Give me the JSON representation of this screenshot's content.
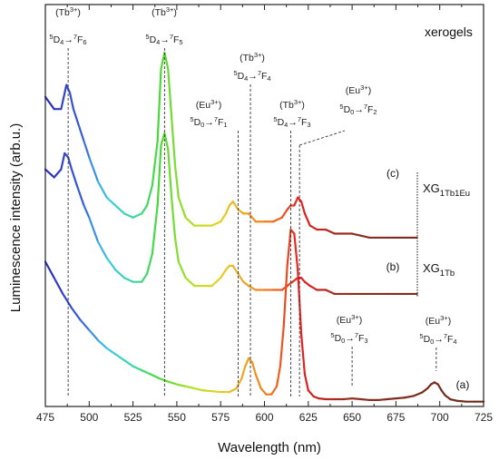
{
  "chart_data": {
    "type": "line",
    "title": "xerogels",
    "xlabel": "Wavelength (nm)",
    "ylabel": "Luminescence intensity (arb.u.)",
    "xlim": [
      475,
      725
    ],
    "xticks": [
      "475",
      "500",
      "525",
      "550",
      "575",
      "600",
      "625",
      "650",
      "675",
      "700",
      "725"
    ],
    "grid": false,
    "y_ticks_shown": false,
    "series": [
      {
        "name": "XG1Tb1Eu",
        "tag": "(c)",
        "x": [
          475,
          480,
          484,
          487,
          489,
          491,
          494,
          497,
          500,
          505,
          510,
          515,
          520,
          525,
          530,
          533,
          536,
          539,
          541,
          543,
          545,
          547,
          549,
          551,
          555,
          560,
          565,
          570,
          575,
          578,
          580,
          582,
          585,
          588,
          591,
          595,
          600,
          605,
          610,
          613,
          615,
          617,
          619,
          621,
          623,
          626,
          630,
          635,
          640,
          650,
          660,
          670,
          680,
          687
        ],
        "y": [
          0.77,
          0.74,
          0.74,
          0.8,
          0.78,
          0.74,
          0.7,
          0.66,
          0.62,
          0.56,
          0.52,
          0.5,
          0.48,
          0.47,
          0.48,
          0.5,
          0.55,
          0.66,
          0.84,
          0.88,
          0.84,
          0.72,
          0.6,
          0.52,
          0.47,
          0.45,
          0.45,
          0.45,
          0.46,
          0.48,
          0.5,
          0.51,
          0.49,
          0.48,
          0.48,
          0.46,
          0.46,
          0.46,
          0.47,
          0.49,
          0.5,
          0.5,
          0.52,
          0.51,
          0.48,
          0.45,
          0.44,
          0.44,
          0.43,
          0.43,
          0.42,
          0.42,
          0.42,
          0.42
        ]
      },
      {
        "name": "XG1Tb",
        "tag": "(b)",
        "x": [
          475,
          480,
          484,
          486,
          488,
          490,
          493,
          497,
          500,
          505,
          510,
          515,
          520,
          525,
          530,
          533,
          536,
          539,
          541,
          543,
          545,
          547,
          549,
          551,
          555,
          560,
          565,
          570,
          575,
          578,
          580,
          582,
          585,
          588,
          591,
          595,
          600,
          605,
          610,
          613,
          616,
          619,
          621,
          623,
          626,
          630,
          635,
          640,
          650,
          660,
          670,
          680,
          687
        ],
        "y": [
          0.59,
          0.57,
          0.59,
          0.63,
          0.62,
          0.59,
          0.55,
          0.5,
          0.47,
          0.41,
          0.37,
          0.34,
          0.32,
          0.31,
          0.31,
          0.33,
          0.38,
          0.5,
          0.65,
          0.68,
          0.64,
          0.52,
          0.42,
          0.36,
          0.32,
          0.3,
          0.3,
          0.3,
          0.32,
          0.34,
          0.35,
          0.35,
          0.33,
          0.31,
          0.3,
          0.29,
          0.29,
          0.29,
          0.29,
          0.3,
          0.31,
          0.32,
          0.32,
          0.31,
          0.3,
          0.29,
          0.29,
          0.28,
          0.28,
          0.28,
          0.28,
          0.28,
          0.28
        ]
      },
      {
        "name": "",
        "tag": "(a)",
        "x": [
          475,
          480,
          485,
          490,
          495,
          500,
          505,
          510,
          515,
          520,
          525,
          530,
          535,
          540,
          545,
          550,
          555,
          560,
          565,
          570,
          575,
          580,
          584,
          587,
          589,
          591,
          593,
          595,
          598,
          601,
          604,
          607,
          609,
          611,
          613,
          615,
          617,
          619,
          621,
          623,
          625,
          628,
          631,
          635,
          640,
          645,
          650,
          655,
          660,
          665,
          670,
          675,
          680,
          685,
          690,
          693,
          695,
          697,
          699,
          701,
          703,
          706,
          710,
          715,
          720,
          725
        ],
        "y": [
          0.36,
          0.32,
          0.28,
          0.245,
          0.215,
          0.19,
          0.165,
          0.145,
          0.13,
          0.115,
          0.1,
          0.09,
          0.08,
          0.07,
          0.062,
          0.055,
          0.05,
          0.045,
          0.04,
          0.038,
          0.036,
          0.036,
          0.045,
          0.07,
          0.1,
          0.12,
          0.11,
          0.08,
          0.045,
          0.03,
          0.03,
          0.05,
          0.1,
          0.2,
          0.35,
          0.44,
          0.43,
          0.34,
          0.18,
          0.08,
          0.04,
          0.025,
          0.02,
          0.018,
          0.018,
          0.018,
          0.02,
          0.018,
          0.016,
          0.016,
          0.018,
          0.02,
          0.022,
          0.026,
          0.035,
          0.045,
          0.055,
          0.06,
          0.055,
          0.04,
          0.028,
          0.018,
          0.014,
          0.012,
          0.012,
          0.012
        ]
      }
    ],
    "series_labels": [
      {
        "text": "XG",
        "sub": "1Tb1Eu",
        "series": 0
      },
      {
        "text": "XG",
        "sub": "1Tb",
        "series": 1
      }
    ],
    "annotations": [
      {
        "x": 488,
        "ion": "(Tb",
        "sup": "3+",
        "ion_close": ")",
        "from": "5",
        "from_term": "D",
        "from_sub": "4",
        "to": "7",
        "to_term": "F",
        "to_sub": "6"
      },
      {
        "x": 543,
        "ion": "(Tb",
        "sup": "3+",
        "ion_close": ")",
        "from": "5",
        "from_term": "D",
        "from_sub": "4",
        "to": "7",
        "to_term": "F",
        "to_sub": "5"
      },
      {
        "x": 585,
        "ion": "(Eu",
        "sup": "3+",
        "ion_close": ")",
        "from": "5",
        "from_term": "D",
        "from_sub": "0",
        "to": "7",
        "to_term": "F",
        "to_sub": "1"
      },
      {
        "x": 592,
        "ion": "(Tb",
        "sup": "3+",
        "ion_close": ")",
        "from": "5",
        "from_term": "D",
        "from_sub": "4",
        "to": "7",
        "to_term": "F",
        "to_sub": "4"
      },
      {
        "x": 615,
        "ion": "(Tb",
        "sup": "3+",
        "ion_close": ")",
        "from": "5",
        "from_term": "D",
        "from_sub": "4",
        "to": "7",
        "to_term": "F",
        "to_sub": "3"
      },
      {
        "x": 620,
        "ion": "(Eu",
        "sup": "3+",
        "ion_close": ")",
        "from": "5",
        "from_term": "D",
        "from_sub": "0",
        "to": "7",
        "to_term": "F",
        "to_sub": "2"
      },
      {
        "x": 650,
        "ion": "(Eu",
        "sup": "3+",
        "ion_close": ")",
        "from": "5",
        "from_term": "D",
        "from_sub": "0",
        "to": "7",
        "to_term": "F",
        "to_sub": "3"
      },
      {
        "x": 698,
        "ion": "(Eu",
        "sup": "3+",
        "ion_close": ")",
        "from": "5",
        "from_term": "D",
        "from_sub": "0",
        "to": "7",
        "to_term": "F",
        "to_sub": "4"
      }
    ],
    "color_gradient": [
      {
        "nm": 475,
        "color": "#2a2ab8"
      },
      {
        "nm": 495,
        "color": "#3a5ad8"
      },
      {
        "nm": 510,
        "color": "#3cc6e8"
      },
      {
        "nm": 525,
        "color": "#3ad8a8"
      },
      {
        "nm": 540,
        "color": "#4ad838"
      },
      {
        "nm": 560,
        "color": "#b8e028"
      },
      {
        "nm": 575,
        "color": "#e8d028"
      },
      {
        "nm": 590,
        "color": "#f0a020"
      },
      {
        "nm": 605,
        "color": "#f07020"
      },
      {
        "nm": 620,
        "color": "#e82020"
      },
      {
        "nm": 650,
        "color": "#8a3020"
      },
      {
        "nm": 725,
        "color": "#6a2a1a"
      }
    ]
  }
}
